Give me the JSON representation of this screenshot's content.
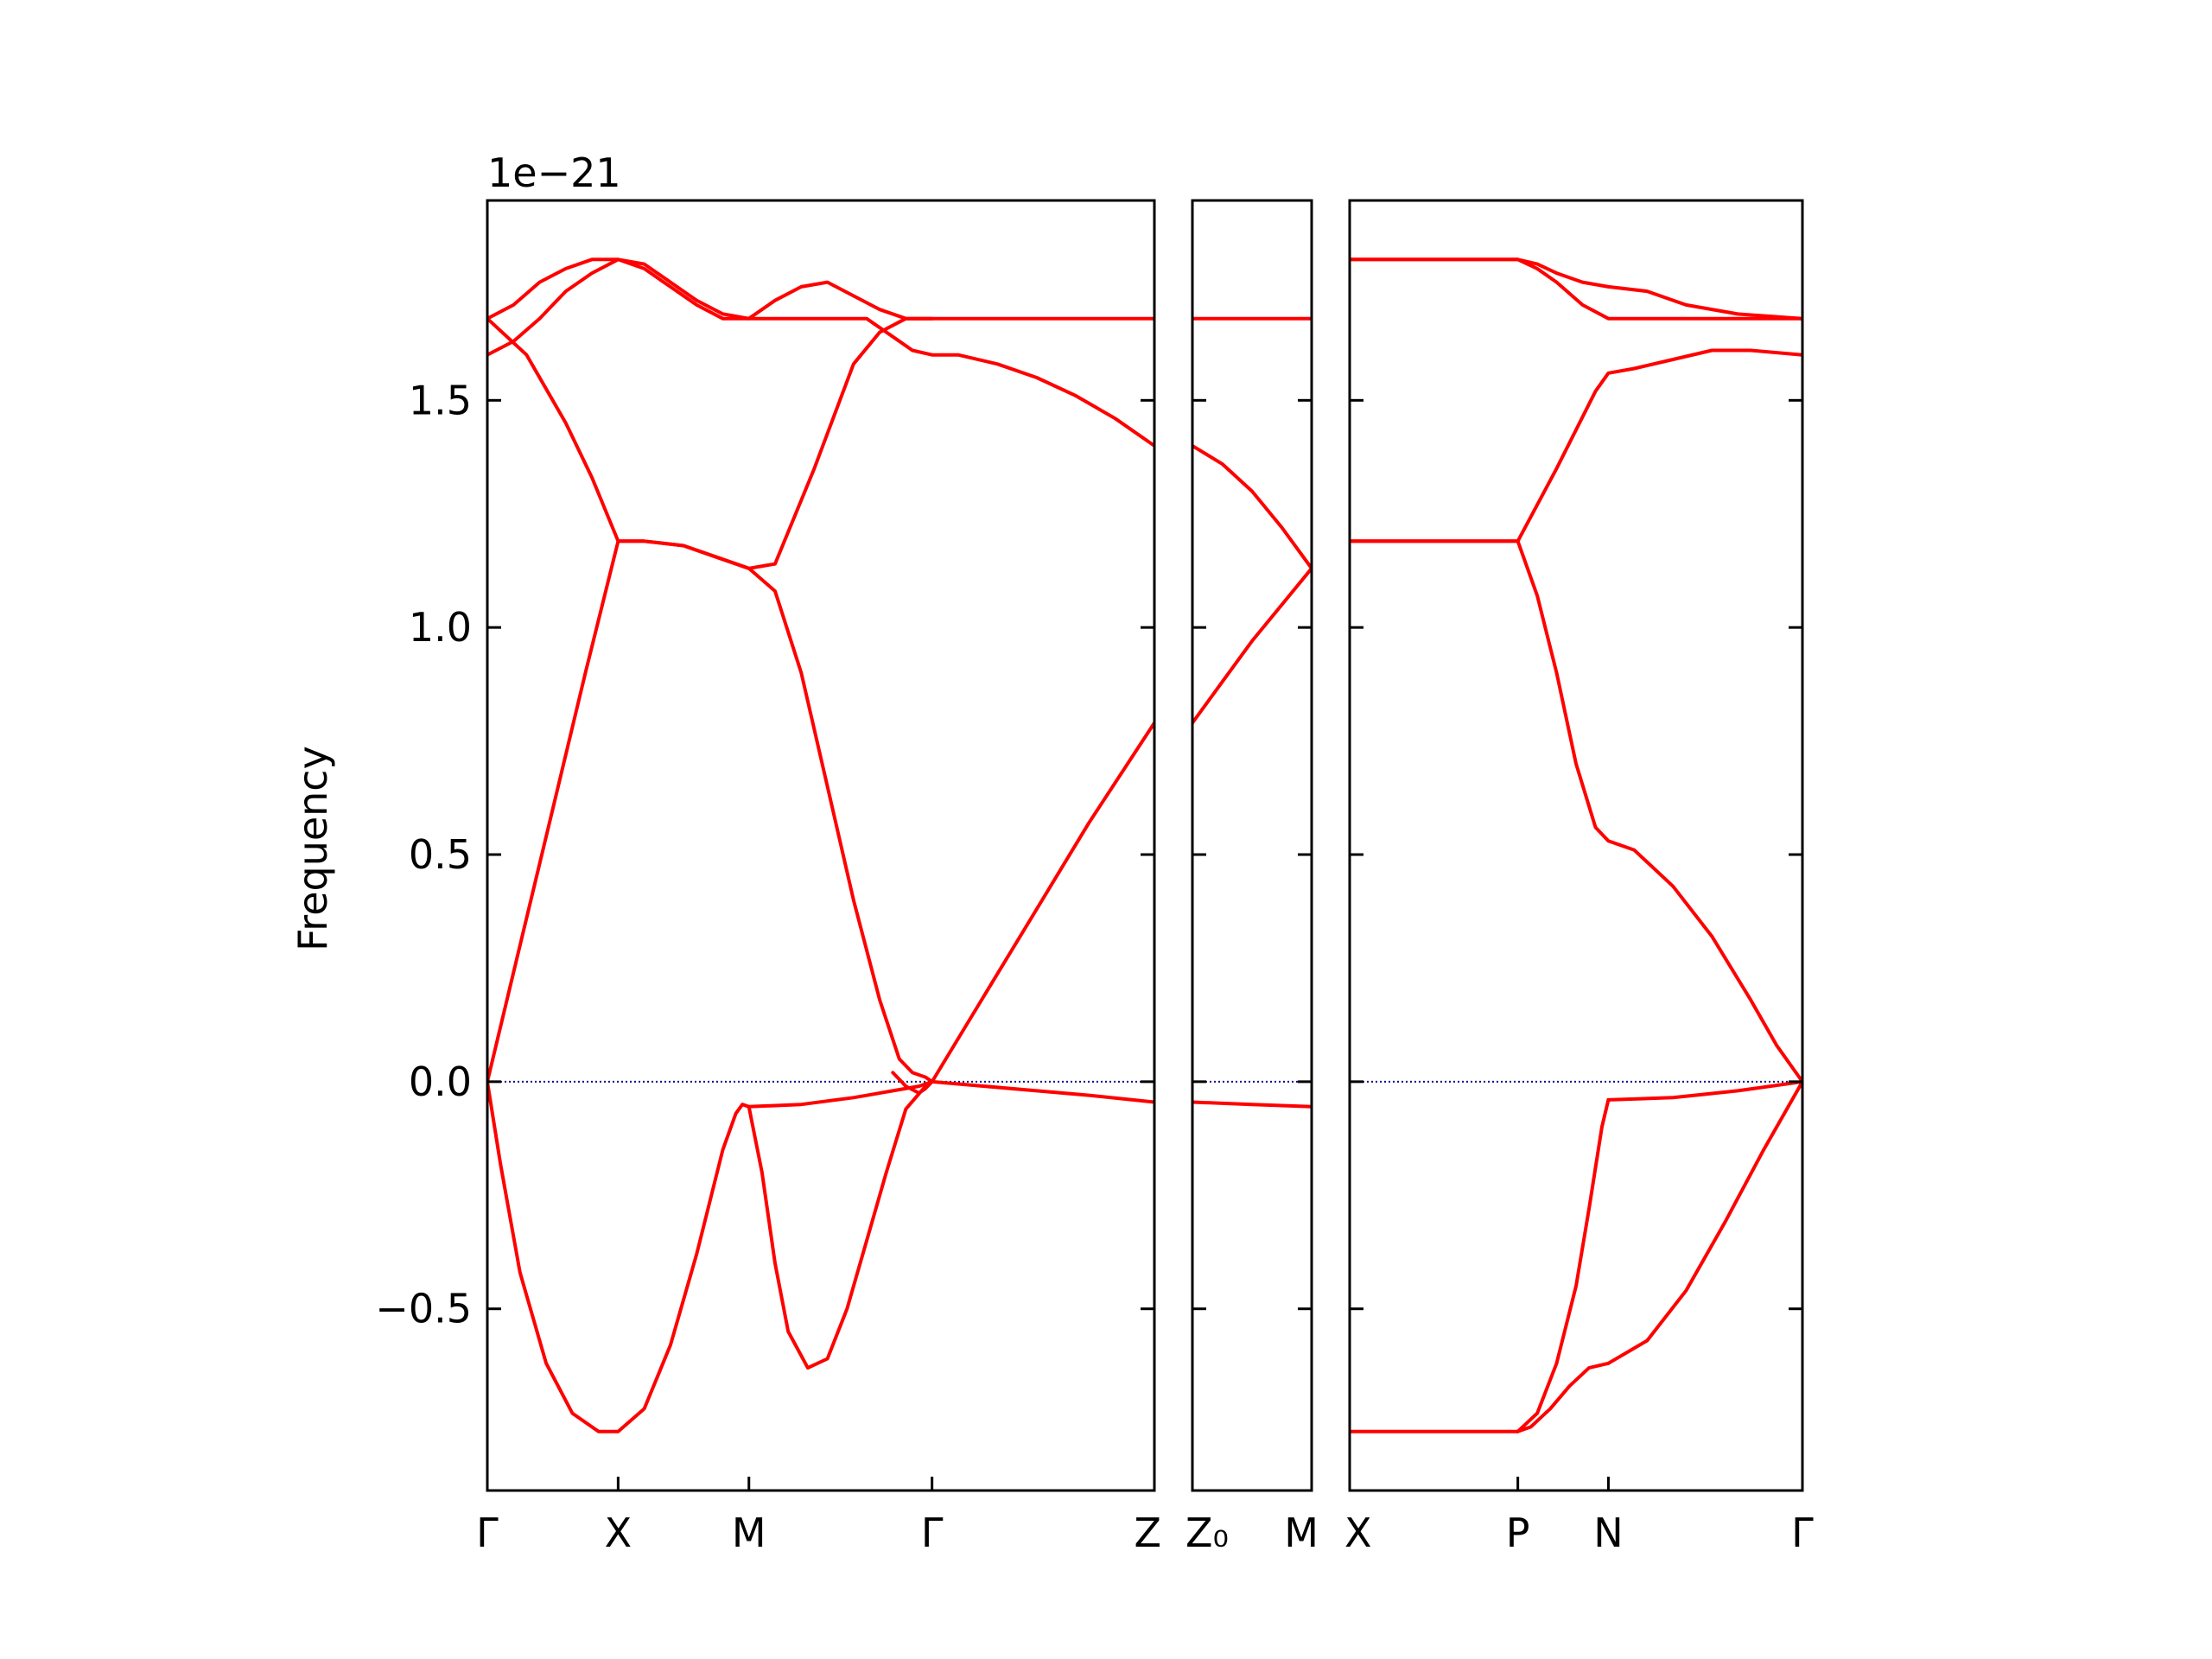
{
  "chart_data": {
    "type": "line",
    "ylabel": "Frequency",
    "y_exponent_label": "1e−21",
    "ylim": [
      -0.9,
      1.94
    ],
    "y_ticks": [
      -0.5,
      0.0,
      0.5,
      1.0,
      1.5
    ],
    "y_tick_labels": [
      "−0.5",
      "0.0",
      "0.5",
      "1.0",
      "1.5"
    ],
    "grid": false,
    "line_color": "#ff0000",
    "zero_line_color": "#00008b",
    "panels": [
      {
        "id": "panel-1",
        "xlim": [
          0,
          5.1
        ],
        "x_ticks": [
          0,
          1,
          2,
          3.4,
          5.1
        ],
        "x_tick_labels": [
          "Γ",
          "X",
          "M",
          "Γ",
          "Z"
        ],
        "series": [
          {
            "x": [
              0,
              0.2,
              0.4,
              0.6,
              0.8,
              1.0,
              1.2,
              1.4,
              1.6,
              1.8,
              2.0,
              2.2,
              2.4,
              2.6,
              2.8,
              3.0,
              3.2,
              3.4,
              3.8,
              4.2,
              4.6,
              5.1
            ],
            "y": [
              1.68,
              1.71,
              1.76,
              1.79,
              1.81,
              1.81,
              1.79,
              1.75,
              1.71,
              1.68,
              1.68,
              1.72,
              1.75,
              1.76,
              1.73,
              1.7,
              1.68,
              1.68,
              1.68,
              1.68,
              1.68,
              1.68
            ]
          },
          {
            "x": [
              0,
              0.2,
              0.4,
              0.6,
              0.8,
              1.0,
              1.2,
              1.4,
              1.6,
              1.8,
              2.0,
              2.3,
              2.6,
              2.9,
              3.1,
              3.25,
              3.4,
              3.6,
              3.9,
              4.2,
              4.5,
              4.8,
              5.1
            ],
            "y": [
              1.6,
              1.63,
              1.68,
              1.74,
              1.78,
              1.81,
              1.8,
              1.76,
              1.72,
              1.69,
              1.68,
              1.68,
              1.68,
              1.68,
              1.64,
              1.61,
              1.6,
              1.6,
              1.58,
              1.55,
              1.51,
              1.46,
              1.4
            ]
          },
          {
            "x": [
              0,
              0.3,
              0.6,
              0.8,
              1.0,
              1.2,
              1.5,
              1.8,
              2.0,
              2.2,
              2.5,
              2.8,
              3.0,
              3.2,
              3.4
            ],
            "y": [
              1.68,
              1.6,
              1.45,
              1.33,
              1.19,
              1.19,
              1.18,
              1.15,
              1.13,
              1.14,
              1.35,
              1.58,
              1.65,
              1.68,
              1.68
            ]
          },
          {
            "x": [
              0,
              0.25,
              0.5,
              0.75,
              1.0,
              1.2,
              1.5,
              1.8,
              2.0,
              2.2,
              2.4,
              2.6,
              2.8,
              3.0,
              3.15,
              3.25,
              3.35,
              3.4
            ],
            "y": [
              0.0,
              0.3,
              0.6,
              0.9,
              1.19,
              1.19,
              1.18,
              1.15,
              1.13,
              1.08,
              0.9,
              0.65,
              0.4,
              0.18,
              0.05,
              0.02,
              0.01,
              0.0
            ]
          },
          {
            "x": [
              3.4,
              3.8,
              4.2,
              4.6,
              5.1
            ],
            "y": [
              0.0,
              0.19,
              0.38,
              0.57,
              0.79
            ]
          },
          {
            "x": [
              0,
              0.1,
              0.25,
              0.45,
              0.65,
              0.85,
              1.0,
              1.2,
              1.4,
              1.6,
              1.8,
              1.9,
              1.95,
              2.0
            ],
            "y": [
              0.0,
              -0.18,
              -0.42,
              -0.62,
              -0.73,
              -0.77,
              -0.77,
              -0.72,
              -0.58,
              -0.38,
              -0.15,
              -0.07,
              -0.05,
              -0.055
            ]
          },
          {
            "x": [
              2.0,
              2.1,
              2.2,
              2.3,
              2.45,
              2.6,
              2.75,
              2.9,
              3.05,
              3.2,
              3.35,
              3.4
            ],
            "y": [
              -0.055,
              -0.2,
              -0.4,
              -0.55,
              -0.63,
              -0.61,
              -0.5,
              -0.35,
              -0.2,
              -0.06,
              -0.01,
              0.0
            ]
          },
          {
            "x": [
              2.0,
              2.4,
              2.8,
              3.1,
              3.3,
              3.4
            ],
            "y": [
              -0.055,
              -0.05,
              -0.035,
              -0.02,
              -0.01,
              0.0
            ]
          },
          {
            "x": [
              3.4,
              3.8,
              4.2,
              4.6,
              5.1
            ],
            "y": [
              0.0,
              -0.01,
              -0.02,
              -0.03,
              -0.045
            ]
          },
          {
            "x": [
              3.1,
              3.2,
              3.3,
              3.35,
              3.4
            ],
            "y": [
              0.02,
              -0.01,
              -0.025,
              -0.015,
              0.0
            ]
          }
        ]
      },
      {
        "id": "panel-2",
        "xlim": [
          0,
          1
        ],
        "x_ticks": [
          0,
          1
        ],
        "x_tick_labels": [
          "Z₀",
          "M"
        ],
        "series": [
          {
            "x": [
              0,
              1
            ],
            "y": [
              1.68,
              1.68
            ]
          },
          {
            "x": [
              0,
              0.25,
              0.5,
              0.75,
              1.0
            ],
            "y": [
              1.4,
              1.36,
              1.3,
              1.22,
              1.13
            ]
          },
          {
            "x": [
              0,
              0.25,
              0.5,
              0.75,
              1.0
            ],
            "y": [
              0.79,
              0.88,
              0.97,
              1.05,
              1.13
            ]
          },
          {
            "x": [
              0,
              0.5,
              1.0
            ],
            "y": [
              -0.045,
              -0.05,
              -0.055
            ]
          }
        ]
      },
      {
        "id": "panel-3",
        "xlim": [
          0,
          3.5
        ],
        "x_ticks": [
          0,
          1.3,
          2.0,
          3.5
        ],
        "x_tick_labels": [
          "X",
          "P",
          "N",
          "Γ"
        ],
        "series": [
          {
            "x": [
              0,
              1.3,
              1.45,
              1.6,
              1.8,
              2.0,
              2.3,
              2.6,
              3.0,
              3.5
            ],
            "y": [
              1.81,
              1.81,
              1.8,
              1.78,
              1.76,
              1.75,
              1.74,
              1.71,
              1.69,
              1.68
            ]
          },
          {
            "x": [
              0,
              1.3,
              1.45,
              1.6,
              1.8,
              2.0,
              2.5,
              3.0,
              3.5
            ],
            "y": [
              1.81,
              1.81,
              1.79,
              1.76,
              1.71,
              1.68,
              1.68,
              1.68,
              1.68
            ]
          },
          {
            "x": [
              0,
              1.3,
              1.6,
              1.9,
              2.0,
              2.2,
              2.5,
              2.8,
              3.1,
              3.5
            ],
            "y": [
              1.19,
              1.19,
              1.35,
              1.52,
              1.56,
              1.57,
              1.59,
              1.61,
              1.61,
              1.6
            ]
          },
          {
            "x": [
              0,
              1.3,
              1.45,
              1.6,
              1.75,
              1.9,
              2.0,
              2.2,
              2.5,
              2.8,
              3.1,
              3.3,
              3.5
            ],
            "y": [
              1.19,
              1.19,
              1.07,
              0.9,
              0.7,
              0.56,
              0.53,
              0.51,
              0.43,
              0.32,
              0.18,
              0.08,
              0.0
            ]
          },
          {
            "x": [
              0,
              1.3,
              1.4,
              1.55,
              1.7,
              1.85,
              2.0
            ],
            "y": [
              -0.77,
              -0.77,
              -0.76,
              -0.72,
              -0.67,
              -0.63,
              -0.62
            ]
          },
          {
            "x": [
              2.0,
              2.3,
              2.6,
              2.9,
              3.2,
              3.5
            ],
            "y": [
              -0.62,
              -0.57,
              -0.46,
              -0.31,
              -0.15,
              0.0
            ]
          },
          {
            "x": [
              1.3,
              1.45,
              1.6,
              1.75,
              1.85,
              1.95,
              2.0
            ],
            "y": [
              -0.77,
              -0.73,
              -0.62,
              -0.45,
              -0.28,
              -0.1,
              -0.04
            ]
          },
          {
            "x": [
              2.0,
              2.5,
              3.0,
              3.5
            ],
            "y": [
              -0.04,
              -0.035,
              -0.02,
              0.0
            ]
          }
        ]
      }
    ]
  }
}
